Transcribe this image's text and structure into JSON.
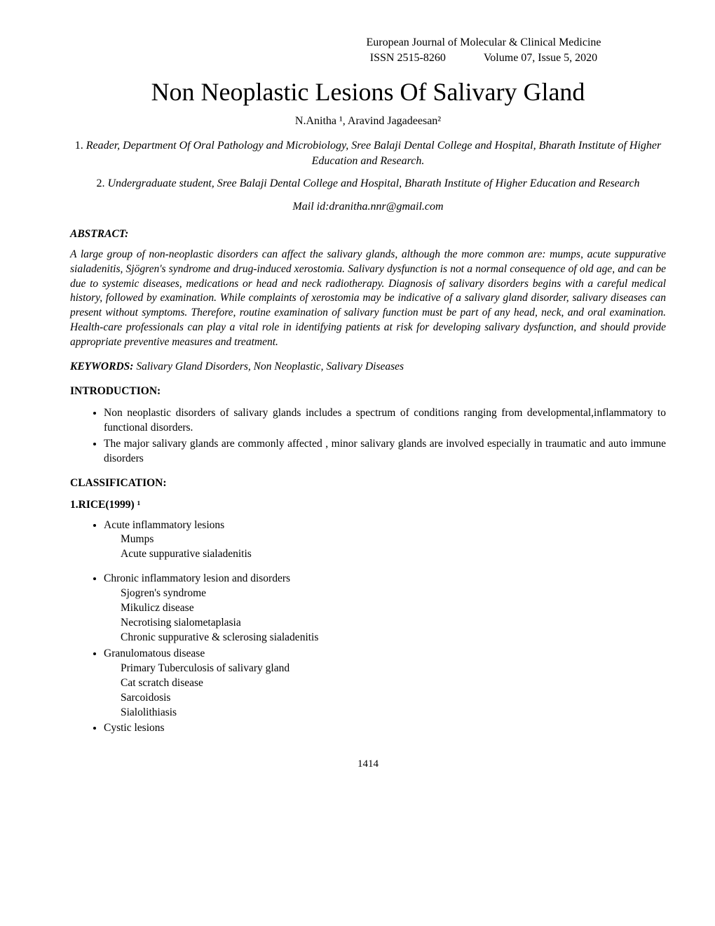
{
  "header": {
    "journal": "European Journal of Molecular & Clinical Medicine",
    "issn_label": "ISSN",
    "issn": "2515-8260",
    "volume": "Volume 07, Issue 5, 2020"
  },
  "title": "Non Neoplastic Lesions Of Salivary Gland",
  "authors": "N.Anitha ¹, Aravind Jagadeesan²",
  "affiliations": [
    {
      "num": "1.",
      "text": " Reader, Department  Of  Oral Pathology and Microbiology, Sree Balaji Dental College and Hospital, Bharath Institute of Higher Education and Research."
    },
    {
      "num": "2.",
      "text": "  Undergraduate student, Sree Balaji Dental College and Hospital, Bharath Institute of Higher Education and Research"
    }
  ],
  "mail": "Mail id:dranitha.nnr@gmail.com",
  "abstract": {
    "label": "ABSTRACT:",
    "text": "A large group of non-neoplastic disorders can affect the salivary glands, although the more common are: mumps, acute suppurative sialadenitis, Sjögren's syndrome and drug-induced xerostomia. Salivary dysfunction is not a normal consequence of old age, and can be due to systemic diseases, medications or head and neck radiotherapy. Diagnosis of salivary disorders begins with a careful medical history, followed by  examination. While complaints of xerostomia may be indicative of a salivary gland disorder, salivary diseases can present without symptoms. Therefore, routine examination of salivary function must be part of any head, neck, and oral examination. Health-care professionals can play a vital role in identifying patients at risk for developing salivary dysfunction, and should provide appropriate preventive measures and treatment."
  },
  "keywords": {
    "label": "KEYWORDS:",
    "value": " Salivary Gland Disorders, Non Neoplastic, Salivary Diseases"
  },
  "intro": {
    "label": "INTRODUCTION:",
    "bullets": [
      "Non neoplastic disorders of salivary glands includes a spectrum of conditions ranging from developmental,inflammatory to functional disorders.",
      " The major salivary glands are commonly affected , minor salivary glands are involved  especially in traumatic and auto immune disorders"
    ]
  },
  "classification": {
    "label": "CLASSIFICATION:",
    "rice_label": "1.RICE(1999) ¹",
    "items": [
      {
        "head": "Acute inflammatory lesions",
        "subs": [
          "Mumps",
          "Acute suppurative sialadenitis"
        ],
        "gap_after": true
      },
      {
        "head": "Chronic inflammatory lesion and disorders",
        "subs": [
          "Sjogren's syndrome",
          "Mikulicz disease",
          "Necrotising sialometaplasia",
          "Chronic suppurative & sclerosing sialadenitis"
        ],
        "gap_after": false
      },
      {
        "head": "Granulomatous disease",
        "subs": [
          "Primary Tuberculosis of salivary gland",
          "Cat scratch disease",
          "Sarcoidosis",
          "Sialolithiasis"
        ],
        "gap_after": false
      },
      {
        "head": "Cystic lesions",
        "subs": [],
        "gap_after": false
      }
    ]
  },
  "page_number": "1414"
}
